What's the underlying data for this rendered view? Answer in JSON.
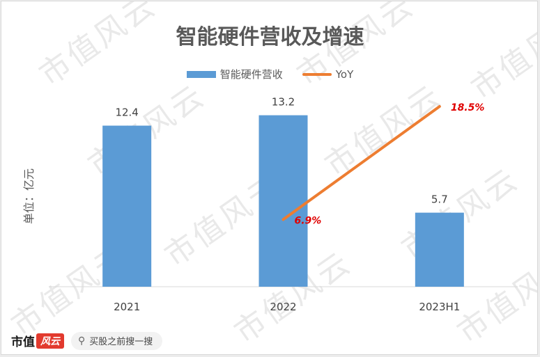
{
  "chart_data": {
    "type": "bar",
    "title": "智能硬件营收及增速",
    "ylabel": "单位：亿元",
    "categories": [
      "2021",
      "2022",
      "2023H1"
    ],
    "ylim": [
      0,
      15
    ],
    "series": [
      {
        "name": "智能硬件营收",
        "type": "bar",
        "values": [
          12.4,
          13.2,
          5.7
        ],
        "color": "#5b9bd5"
      },
      {
        "name": "YoY",
        "type": "line",
        "values": [
          null,
          6.9,
          18.5
        ],
        "labels": [
          "",
          "6.9%",
          "18.5%"
        ],
        "ylim": [
          0,
          20
        ],
        "color": "#ed7d31"
      }
    ],
    "value_labels": [
      "12.4",
      "13.2",
      "5.7"
    ],
    "grid": false,
    "legend": "top-center"
  },
  "watermark_text": "市值风云",
  "footer": {
    "logo_text": "市值",
    "logo_mark": "风云",
    "search_icon": "search-icon",
    "search_text": "买股之前搜一搜"
  }
}
